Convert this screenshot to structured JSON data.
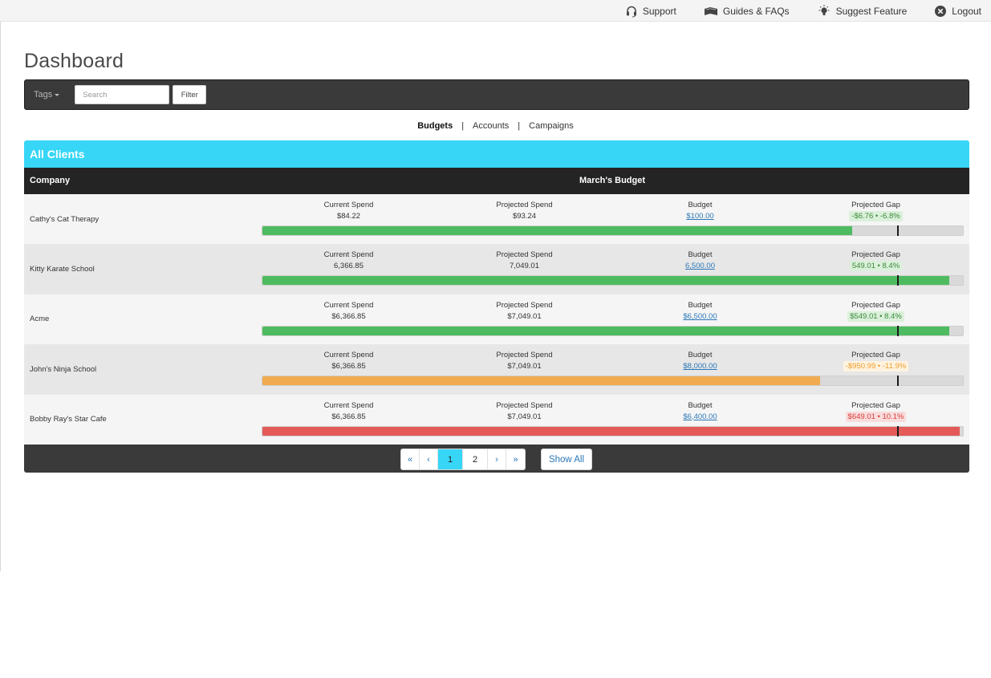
{
  "topnav": {
    "support": "Support",
    "guides": "Guides & FAQs",
    "suggest": "Suggest Feature",
    "logout": "Logout"
  },
  "page_title": "Dashboard",
  "filter_bar": {
    "tags_label": "Tags",
    "search_placeholder": "Search",
    "filter_label": "Filter"
  },
  "views": {
    "budgets": "Budgets",
    "separator": "|",
    "accounts": "Accounts",
    "campaigns": "Campaigns"
  },
  "panel": {
    "title": "All Clients",
    "col_company": "Company",
    "col_budget": "March's Budget"
  },
  "metric_labels": {
    "current": "Current Spend",
    "projected": "Projected Spend",
    "budget": "Budget",
    "gap": "Projected Gap"
  },
  "colors": {
    "accent": "#37d6f6",
    "on_track": "#4fbb60",
    "warning": "#f0ab51",
    "over": "#e35a58"
  },
  "clients": [
    {
      "company": "Cathy's Cat Therapy",
      "current": "$84.22",
      "projected": "$93.24",
      "budget": "$100.00",
      "gap": "-$6.76 • -6.8%",
      "gap_status": "green",
      "progress": 0.842,
      "marker": 0.905
    },
    {
      "company": "Kitty Karate School",
      "current": "6,366.85",
      "projected": "7,049.01",
      "budget": "6,500.00",
      "gap": "549.01 • 8.4%",
      "gap_status": "green",
      "progress": 0.98,
      "marker": 0.905
    },
    {
      "company": "Acme",
      "current": "$6,366.85",
      "projected": "$7,049.01",
      "budget": "$6,500.00",
      "gap": "$549.01 • 8.4%",
      "gap_status": "green",
      "progress": 0.98,
      "marker": 0.905
    },
    {
      "company": "John's Ninja School",
      "current": "$6,366.85",
      "projected": "$7,049.01",
      "budget": "$8,000.00",
      "gap": "-$950.99 • -11.9%",
      "gap_status": "orange",
      "progress": 0.796,
      "marker": 0.905
    },
    {
      "company": "Bobby Ray's Star Cafe",
      "current": "$6,366.85",
      "projected": "$7,049.01",
      "budget": "$6,400.00",
      "gap": "$649.01 • 10.1%",
      "gap_status": "red",
      "progress": 0.995,
      "marker": 0.905
    }
  ],
  "pagination": {
    "first": "«",
    "prev": "‹",
    "pages": [
      "1",
      "2"
    ],
    "next": "›",
    "last": "»",
    "show_all": "Show All"
  }
}
